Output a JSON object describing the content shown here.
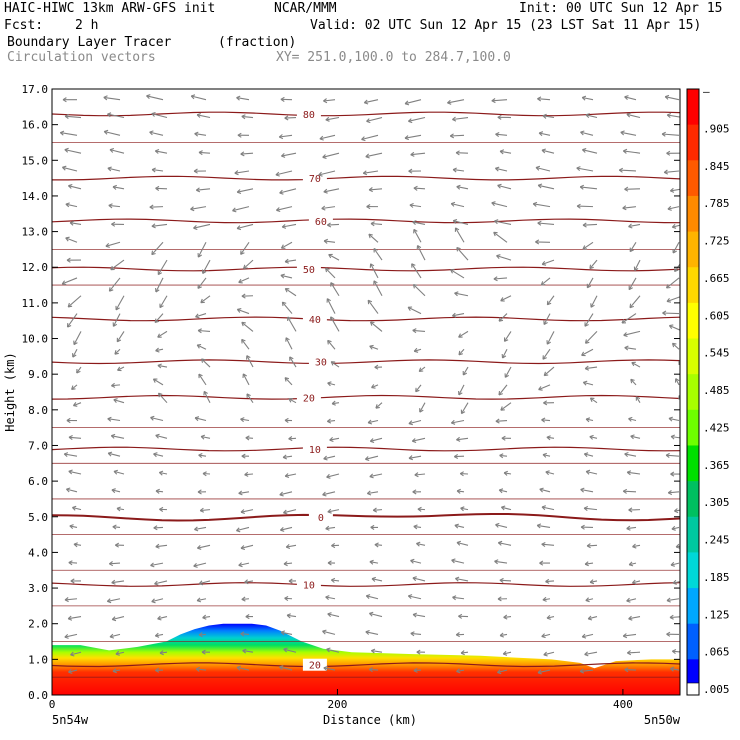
{
  "header": {
    "model": "HAIC-HIWC 13km ARW-GFS init",
    "org": "NCAR/MMM",
    "init": "Init: 00 UTC Sun 12 Apr 15",
    "fcst_label": "Fcst:",
    "fcst_value": "2 h",
    "valid": "Valid: 02 UTC Sun 12 Apr 15 (23 LST Sat 11 Apr 15)",
    "field": "Boundary Layer Tracer",
    "units": "(fraction)",
    "vectors": "Circulation vectors",
    "xy": "XY= 251.0,100.0 to 284.7,100.0"
  },
  "chart_data": {
    "type": "heatmap",
    "xlabel": "Distance (km)",
    "ylabel": "Height (km)",
    "xlim": [
      0,
      440
    ],
    "ylim": [
      0,
      17
    ],
    "x_ticks": [
      "0",
      "200",
      "400"
    ],
    "y_ticks": [
      "0.0",
      "1.0",
      "2.0",
      "3.0",
      "4.0",
      "5.0",
      "6.0",
      "7.0",
      "8.0",
      "9.0",
      "10.0",
      "11.0",
      "12.0",
      "13.0",
      "14.0",
      "15.0",
      "16.0",
      "17.0"
    ],
    "corner_left": "5n54w",
    "corner_right": "5n50w",
    "tracer_top_km": [
      [
        0,
        1.4
      ],
      [
        20,
        1.4
      ],
      [
        40,
        1.25
      ],
      [
        60,
        1.35
      ],
      [
        80,
        1.5
      ],
      [
        90,
        1.7
      ],
      [
        100,
        1.85
      ],
      [
        110,
        1.95
      ],
      [
        120,
        2.0
      ],
      [
        140,
        2.0
      ],
      [
        150,
        1.95
      ],
      [
        160,
        1.8
      ],
      [
        175,
        1.5
      ],
      [
        190,
        1.3
      ],
      [
        210,
        1.2
      ],
      [
        250,
        1.15
      ],
      [
        300,
        1.1
      ],
      [
        350,
        1.0
      ],
      [
        370,
        0.9
      ],
      [
        380,
        0.75
      ],
      [
        395,
        0.95
      ],
      [
        420,
        1.0
      ],
      [
        440,
        1.0
      ]
    ],
    "isotherms": [
      {
        "label": "80",
        "km": 16.3
      },
      {
        "label": "70",
        "km": 14.5
      },
      {
        "label": "60",
        "km": 13.3
      },
      {
        "label": "50",
        "km": 11.95
      },
      {
        "label": "40",
        "km": 10.55
      },
      {
        "label": "30",
        "km": 9.35
      },
      {
        "label": "20",
        "km": 8.35
      },
      {
        "label": "10",
        "km": 6.9
      },
      {
        "label": "0",
        "km": 5.0
      },
      {
        "label": "10",
        "km": 3.1
      },
      {
        "label": "20",
        "km": 0.85
      }
    ],
    "colorbar_labels": [
      "–",
      ".905",
      ".845",
      ".785",
      ".725",
      ".665",
      ".605",
      ".545",
      ".485",
      ".425",
      ".365",
      ".305",
      ".245",
      ".185",
      ".125",
      ".065",
      ".005"
    ],
    "colorbar_colors": [
      "#ff0000",
      "#ff2a00",
      "#ff5a00",
      "#ff8a00",
      "#ffb400",
      "#ffd800",
      "#ffff00",
      "#d8ff00",
      "#a8ff00",
      "#6eff00",
      "#00e000",
      "#00c060",
      "#00c8a0",
      "#00d8d8",
      "#00a8ff",
      "#0060ff",
      "#0000ff"
    ],
    "colors": {
      "contour": "#8b1a1a",
      "vector": "#808080"
    }
  }
}
